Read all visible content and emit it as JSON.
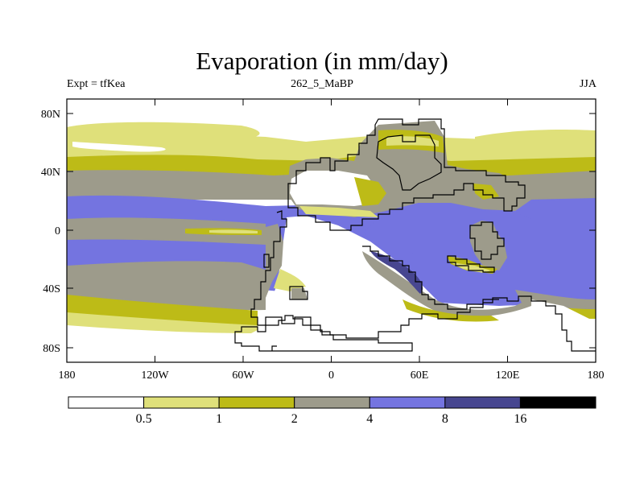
{
  "title": "Evaporation (in mm/day)",
  "subtitle_left": "Expt = tfKea",
  "subtitle_center": "262_5_MaBP",
  "subtitle_right": "JJA",
  "colors": {
    "c0": "#ffffff",
    "c1": "#dfe07a",
    "c2": "#bdbb17",
    "c3": "#9d9b8b",
    "c4": "#7474e0",
    "c5": "#474690",
    "c6": "#000000"
  },
  "lat_ticks": [
    "80N",
    "40N",
    "0",
    "40S",
    "80S"
  ],
  "lon_ticks": [
    "180",
    "120W",
    "60W",
    "0",
    "60E",
    "120E",
    "180"
  ],
  "colorbar": {
    "labels": [
      "0.5",
      "1",
      "2",
      "4",
      "8",
      "16"
    ],
    "colors": [
      "#ffffff",
      "#dfe07a",
      "#bdbb17",
      "#9d9b8b",
      "#7474e0",
      "#474690",
      "#000000"
    ]
  }
}
